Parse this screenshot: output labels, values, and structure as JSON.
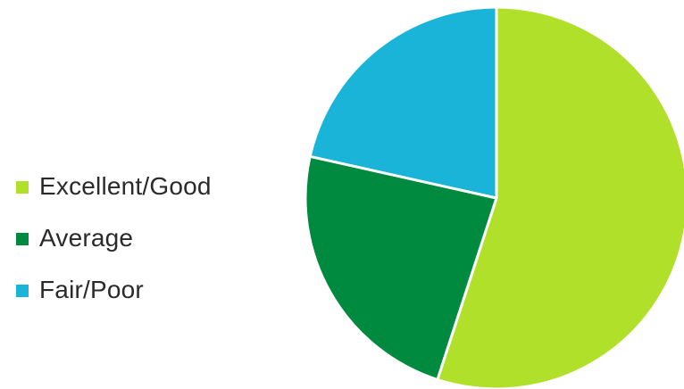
{
  "chart_data": {
    "type": "pie",
    "title": "",
    "categories": [
      "Excellent/Good",
      "Average",
      "Fair/Poor"
    ],
    "values": [
      55,
      23.5,
      21.5
    ],
    "unit": "%",
    "colors": [
      "#b0e02a",
      "#008a3f",
      "#1ab4d8"
    ],
    "start_angle_deg": 0,
    "direction": "clockwise",
    "legend_position": "left",
    "data_labels": false
  }
}
